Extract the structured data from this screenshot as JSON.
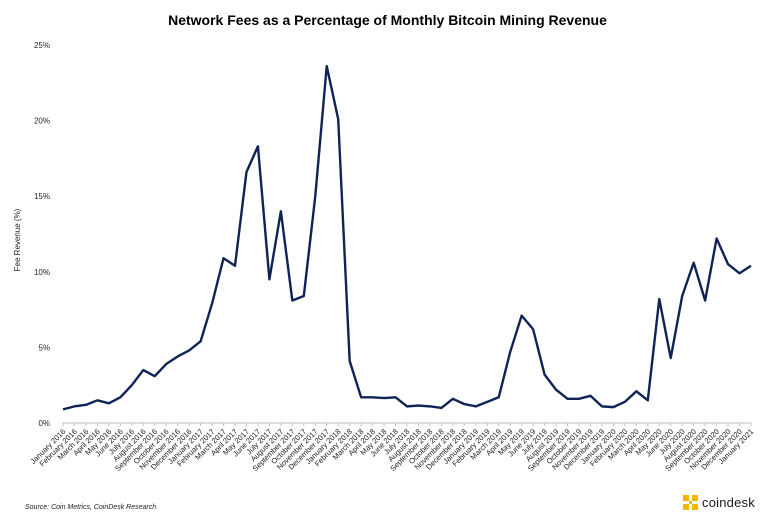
{
  "chart_data": {
    "type": "line",
    "title": "Network Fees as a Percentage of Monthly Bitcoin Mining Revenue",
    "xlabel": "",
    "ylabel": "Fee Revenue (%)",
    "ylim": [
      0,
      25
    ],
    "yticks": [
      "0%",
      "5%",
      "10%",
      "15%",
      "20%",
      "25%"
    ],
    "ytick_values": [
      0,
      5,
      10,
      15,
      20,
      25
    ],
    "grid": false,
    "categories": [
      "January 2016",
      "February 2016",
      "March 2016",
      "April 2016",
      "May 2016",
      "June 2016",
      "July 2016",
      "August 2016",
      "September 2016",
      "October 2016",
      "November 2016",
      "December 2016",
      "January 2017",
      "February 2017",
      "March 2017",
      "April 2017",
      "May 2017",
      "June 2017",
      "July 2017",
      "August 2017",
      "September 2017",
      "October 2017",
      "November 2017",
      "December 2017",
      "January 2018",
      "February 2018",
      "March 2018",
      "April 2018",
      "May 2018",
      "June 2018",
      "July 2018",
      "August 2018",
      "September 2018",
      "October 2018",
      "November 2018",
      "December 2018",
      "January 2019",
      "February 2019",
      "March 2019",
      "April 2019",
      "May 2019",
      "June 2019",
      "July 2019",
      "August 2019",
      "September 2019",
      "October 2019",
      "November 2019",
      "December 2019",
      "January 2020",
      "February 2020",
      "March 2020",
      "April 2020",
      "May 2020",
      "June 2020",
      "July 2020",
      "August 2020",
      "September 2020",
      "October 2020",
      "November 2020",
      "December 2020",
      "January 2021"
    ],
    "series": [
      {
        "name": "Fee Revenue (%)",
        "color": "#0f2356",
        "values": [
          0.9,
          1.1,
          1.2,
          1.5,
          1.3,
          1.7,
          2.5,
          3.5,
          3.1,
          3.9,
          4.4,
          4.8,
          5.4,
          7.9,
          10.9,
          10.4,
          16.6,
          18.3,
          9.5,
          14.0,
          8.1,
          8.4,
          15.0,
          23.6,
          20.1,
          4.1,
          1.7,
          1.7,
          1.65,
          1.7,
          1.1,
          1.15,
          1.1,
          1.0,
          1.6,
          1.25,
          1.1,
          1.4,
          1.7,
          4.7,
          7.1,
          6.2,
          3.2,
          2.2,
          1.6,
          1.6,
          1.8,
          1.1,
          1.05,
          1.4,
          2.1,
          1.5,
          8.2,
          4.3,
          8.4,
          10.6,
          8.1,
          12.2,
          10.5,
          9.9,
          10.4
        ]
      }
    ]
  },
  "source_note": "Source: Coin Metrics, CoinDesk Research",
  "brand": {
    "name": "coindesk",
    "color": "#f5b400"
  }
}
